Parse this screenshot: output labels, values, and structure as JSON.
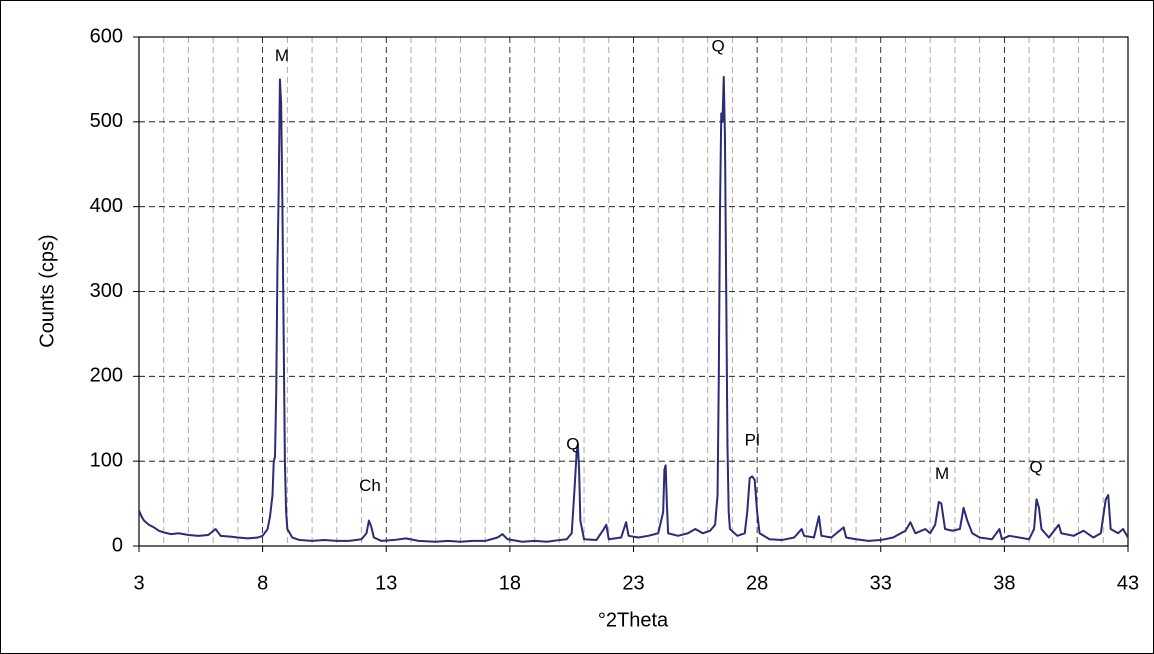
{
  "chart_data": {
    "type": "line",
    "x": [
      3.0,
      3.1,
      3.2,
      3.4,
      3.6,
      3.8,
      4.0,
      4.3,
      4.6,
      5.0,
      5.4,
      5.8,
      6.1,
      6.3,
      6.7,
      7.0,
      7.4,
      7.8,
      8.0,
      8.2,
      8.3,
      8.4,
      8.45,
      8.5,
      8.55,
      8.6,
      8.65,
      8.7,
      8.75,
      8.8,
      8.85,
      8.9,
      8.95,
      9.0,
      9.2,
      9.5,
      10.0,
      10.5,
      11.0,
      11.5,
      12.0,
      12.2,
      12.3,
      12.4,
      12.5,
      12.8,
      13.3,
      13.8,
      14.3,
      15.0,
      15.5,
      16.0,
      16.5,
      17.0,
      17.5,
      17.7,
      17.9,
      18.5,
      19.0,
      19.5,
      20.0,
      20.3,
      20.5,
      20.6,
      20.7,
      20.75,
      20.8,
      20.85,
      21.0,
      21.5,
      21.8,
      21.9,
      22.0,
      22.5,
      22.7,
      22.8,
      23.2,
      23.6,
      24.0,
      24.2,
      24.25,
      24.3,
      24.35,
      24.4,
      24.8,
      25.2,
      25.5,
      25.8,
      26.1,
      26.3,
      26.4,
      26.45,
      26.5,
      26.55,
      26.6,
      26.65,
      26.7,
      26.75,
      26.8,
      26.85,
      26.9,
      27.2,
      27.5,
      27.6,
      27.7,
      27.8,
      27.9,
      28.0,
      28.1,
      28.5,
      29.0,
      29.5,
      29.8,
      29.9,
      30.3,
      30.5,
      30.6,
      31.0,
      31.5,
      31.6,
      32.0,
      32.5,
      33.0,
      33.5,
      34.0,
      34.2,
      34.4,
      34.8,
      35.0,
      35.2,
      35.35,
      35.45,
      35.6,
      35.9,
      36.2,
      36.35,
      36.5,
      36.7,
      37.0,
      37.5,
      37.8,
      37.9,
      38.2,
      38.6,
      39.0,
      39.2,
      39.3,
      39.4,
      39.5,
      39.8,
      40.2,
      40.3,
      40.8,
      41.2,
      41.6,
      41.9,
      42.1,
      42.2,
      42.3,
      42.6,
      42.8,
      43.0
    ],
    "values": [
      42,
      35,
      30,
      25,
      22,
      18,
      16,
      14,
      15,
      13,
      12,
      13,
      20,
      12,
      11,
      10,
      9,
      10,
      12,
      20,
      35,
      60,
      100,
      105,
      180,
      330,
      420,
      550,
      520,
      400,
      250,
      100,
      40,
      20,
      10,
      7,
      6,
      7,
      6,
      6,
      8,
      15,
      30,
      22,
      10,
      6,
      7,
      9,
      6,
      5,
      6,
      5,
      6,
      6,
      10,
      14,
      8,
      5,
      6,
      5,
      7,
      8,
      15,
      60,
      110,
      120,
      90,
      30,
      8,
      7,
      20,
      25,
      8,
      10,
      28,
      12,
      10,
      12,
      15,
      40,
      90,
      95,
      50,
      15,
      12,
      15,
      20,
      15,
      18,
      25,
      60,
      200,
      400,
      510,
      500,
      553,
      480,
      300,
      120,
      40,
      20,
      12,
      15,
      40,
      80,
      82,
      78,
      40,
      15,
      8,
      7,
      10,
      20,
      12,
      10,
      35,
      12,
      10,
      22,
      10,
      8,
      6,
      7,
      10,
      18,
      28,
      15,
      20,
      15,
      25,
      52,
      50,
      20,
      18,
      20,
      45,
      30,
      15,
      10,
      8,
      20,
      8,
      12,
      10,
      8,
      20,
      55,
      45,
      20,
      10,
      25,
      15,
      12,
      18,
      10,
      15,
      55,
      60,
      20,
      15,
      20,
      10
    ],
    "color": "#2b2b78",
    "xlim": [
      3,
      43
    ],
    "xticks": [
      3,
      8,
      13,
      18,
      23,
      28,
      33,
      38,
      43
    ],
    "xminorticks": [
      4,
      5,
      6,
      7,
      9,
      10,
      11,
      12,
      14,
      15,
      16,
      17,
      19,
      20,
      21,
      22,
      24,
      25,
      26,
      27,
      29,
      30,
      31,
      32,
      34,
      35,
      36,
      37,
      39,
      40,
      41,
      42
    ],
    "ylim": [
      0,
      600
    ],
    "yticks": [
      0,
      100,
      200,
      300,
      400,
      500,
      600
    ],
    "grid": true,
    "xlabel": "°2Theta",
    "ylabel": "Counts (cps)",
    "annotations": [
      {
        "text": "M",
        "x": 8.78,
        "y": 577
      },
      {
        "text": "Ch",
        "x": 12.34,
        "y": 70
      },
      {
        "text": "Q",
        "x": 20.55,
        "y": 119
      },
      {
        "text": "Q",
        "x": 26.42,
        "y": 588
      },
      {
        "text": "Pl",
        "x": 27.8,
        "y": 124
      },
      {
        "text": "M",
        "x": 35.48,
        "y": 84
      },
      {
        "text": "Q",
        "x": 39.28,
        "y": 92
      }
    ]
  }
}
